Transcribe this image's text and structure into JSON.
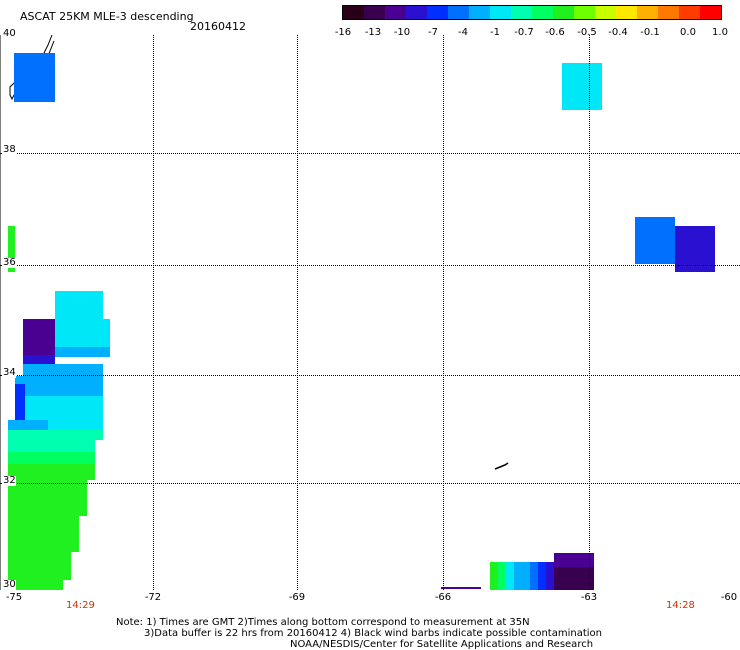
{
  "header": {
    "title": "ASCAT 25KM MLE-3 descending",
    "date": "20160412"
  },
  "colorbar": {
    "colors": [
      "#2a0018",
      "#3a0050",
      "#4a0090",
      "#2a10d0",
      "#0030ff",
      "#0070ff",
      "#00b0ff",
      "#00e8f8",
      "#00ffb0",
      "#00ff60",
      "#20f020",
      "#70ff00",
      "#c8ff00",
      "#ffe800",
      "#ffb000",
      "#ff7800",
      "#ff3c00",
      "#ff0000"
    ],
    "labels": [
      "-16",
      "-13",
      "-10",
      "-7",
      "-4",
      "-1",
      "-0.7",
      "-0.6",
      "-0.5",
      "-0.4",
      "-0.1",
      "0.0",
      "1.0"
    ]
  },
  "map": {
    "x_labels": [
      "-75",
      "-72",
      "-69",
      "-66",
      "-63",
      "-60"
    ],
    "y_labels": [
      "40",
      "38",
      "36",
      "34",
      "32",
      "30"
    ],
    "time_left": "14:29",
    "time_right": "14:28"
  },
  "notes": {
    "line1": "Note: 1) Times are GMT 2)Times along bottom correspond to measurement at 35N",
    "line2": "3)Data buffer is 22 hrs from 20160412 4) Black wind barbs indicate possible contamination",
    "line3": "NOAA/NESDIS/Center for Satellite Applications and Research"
  }
}
